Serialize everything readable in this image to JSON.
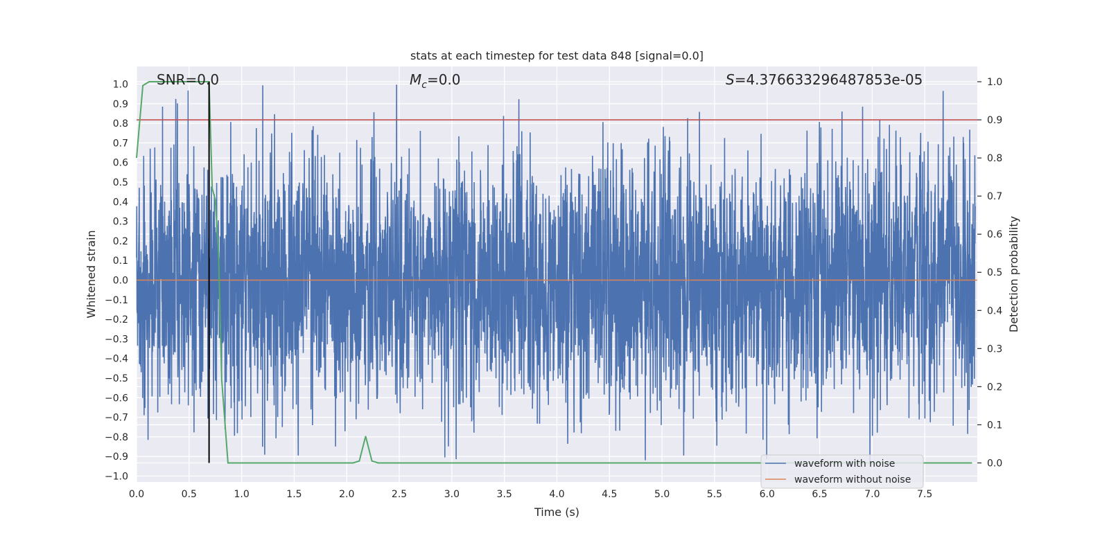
{
  "chart_data": {
    "type": "line",
    "title": "stats at each timestep for test data 848 [signal=0.0]",
    "xlabel": "Time (s)",
    "ylabel": "Whitened strain",
    "ylabel_right": "Detection probability",
    "xlim": [
      0.0,
      8.0
    ],
    "ylim": [
      -1.03,
      1.09
    ],
    "ylim_right": [
      -0.05,
      1.04
    ],
    "x_ticks": [
      "0.0",
      "0.5",
      "1.0",
      "1.5",
      "2.0",
      "2.5",
      "3.0",
      "3.5",
      "4.0",
      "4.5",
      "5.0",
      "5.5",
      "6.0",
      "6.5",
      "7.0",
      "7.5"
    ],
    "y_ticks": [
      "1.0",
      "0.9",
      "0.8",
      "0.7",
      "0.6",
      "0.5",
      "0.4",
      "0.3",
      "0.2",
      "0.1",
      "0.0",
      "−0.1",
      "−0.2",
      "−0.3",
      "−0.4",
      "−0.5",
      "−0.6",
      "−0.7",
      "−0.8",
      "−0.9",
      "−1.0"
    ],
    "y_ticks_right": [
      "1.0",
      "0.9",
      "0.8",
      "0.7",
      "0.6",
      "0.5",
      "0.4",
      "0.3",
      "0.2",
      "0.1",
      "0.0"
    ],
    "annotations": {
      "snr": "SNR=0.0",
      "mc_symbol": "M",
      "mc_sub": "c",
      "mc_value": "=0.0",
      "s_symbol": "S",
      "s_value": "=4.376633296487853e-05"
    },
    "threshold_right": 0.9,
    "vline_x": 0.69,
    "colors": {
      "noise": "#4c72b0",
      "clean": "#dd8452",
      "prob": "#55a868",
      "threshold": "#c44e52",
      "vline": "#000000",
      "background": "#eaeaf2",
      "grid": "#ffffff"
    },
    "series": [
      {
        "name": "waveform with noise",
        "description": "whitened noise samples spanning roughly -0.9 to 1.0"
      },
      {
        "name": "waveform without noise",
        "values_constant": 0.0
      }
    ],
    "probability": {
      "x": [
        0.0,
        0.06,
        0.12,
        0.18,
        0.24,
        0.3,
        0.36,
        0.42,
        0.48,
        0.54,
        0.6,
        0.66,
        0.69,
        0.72,
        0.75,
        0.78,
        0.81,
        0.87,
        1.0,
        1.5,
        2.0,
        2.06,
        2.12,
        2.18,
        2.24,
        2.3,
        3.0,
        4.0,
        5.0,
        6.0,
        7.0,
        7.95
      ],
      "y": [
        0.8,
        0.99,
        1.0,
        1.0,
        1.0,
        1.0,
        1.0,
        1.0,
        1.0,
        1.0,
        1.0,
        1.0,
        1.0,
        0.72,
        0.69,
        0.55,
        0.22,
        0.0,
        0.0,
        0.0,
        0.0,
        0.0,
        0.005,
        0.07,
        0.005,
        0.0,
        0.0,
        0.0,
        0.0,
        0.0,
        0.0,
        0.0
      ]
    },
    "legend": {
      "position": "lower right",
      "entries": [
        "waveform with noise",
        "waveform without noise"
      ]
    }
  }
}
